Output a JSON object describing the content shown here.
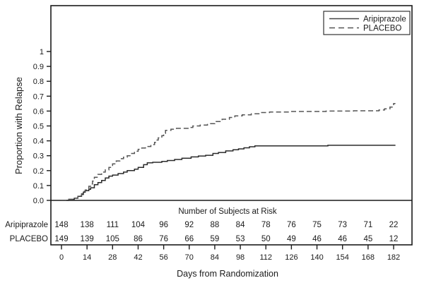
{
  "figure": {
    "background": "#ffffff",
    "frame_color": "#1a1a1a",
    "text_color": "#1a1a1a"
  },
  "chart_data": {
    "type": "line",
    "subtype": "kaplan-meier-step",
    "title": "",
    "xlabel": "Days from Randomization",
    "ylabel": "Proportion with Relapse",
    "grid": false,
    "xlim": [
      0,
      182
    ],
    "ylim": [
      0,
      1
    ],
    "x_ticks": [
      0,
      14,
      28,
      42,
      56,
      70,
      84,
      98,
      112,
      126,
      140,
      154,
      168,
      182
    ],
    "y_tick_values": [
      0,
      0.1,
      0.2,
      0.3,
      0.4,
      0.5,
      0.6,
      0.7,
      0.8,
      0.9,
      1
    ],
    "y_tick_labels": [
      "0.0",
      "0.1",
      "0.2",
      "0.3",
      "0.4",
      "0.5",
      "0.6",
      "0.7",
      "0.8",
      "0.9",
      "1"
    ],
    "legend_position": "top-right",
    "legend": {
      "entries": [
        {
          "label": "Aripiprazole",
          "style": "solid"
        },
        {
          "label": "PLACEBO",
          "style": "dashed"
        }
      ]
    },
    "series": [
      {
        "name": "Aripiprazole",
        "line_style": "solid",
        "color": "#2a2a2a",
        "points": [
          [
            0,
            0
          ],
          [
            4,
            0.007
          ],
          [
            7,
            0.014
          ],
          [
            9,
            0.027
          ],
          [
            11,
            0.04
          ],
          [
            12,
            0.055
          ],
          [
            13,
            0.065
          ],
          [
            15,
            0.075
          ],
          [
            16,
            0.085
          ],
          [
            18,
            0.105
          ],
          [
            20,
            0.12
          ],
          [
            22,
            0.134
          ],
          [
            24,
            0.15
          ],
          [
            26,
            0.163
          ],
          [
            28,
            0.17
          ],
          [
            31,
            0.18
          ],
          [
            34,
            0.19
          ],
          [
            36,
            0.2
          ],
          [
            40,
            0.21
          ],
          [
            42,
            0.222
          ],
          [
            45,
            0.24
          ],
          [
            47,
            0.252
          ],
          [
            50,
            0.256
          ],
          [
            55,
            0.262
          ],
          [
            58,
            0.268
          ],
          [
            62,
            0.275
          ],
          [
            66,
            0.283
          ],
          [
            71,
            0.292
          ],
          [
            75,
            0.298
          ],
          [
            79,
            0.303
          ],
          [
            83,
            0.315
          ],
          [
            86,
            0.322
          ],
          [
            90,
            0.332
          ],
          [
            94,
            0.34
          ],
          [
            97,
            0.346
          ],
          [
            100,
            0.353
          ],
          [
            103,
            0.36
          ],
          [
            106,
            0.366
          ],
          [
            146,
            0.37
          ],
          [
            183,
            0.37
          ]
        ]
      },
      {
        "name": "PLACEBO",
        "line_style": "dashed",
        "color": "#555555",
        "points": [
          [
            0,
            0
          ],
          [
            4,
            0.007
          ],
          [
            7,
            0.015
          ],
          [
            9,
            0.03
          ],
          [
            11,
            0.045
          ],
          [
            12,
            0.06
          ],
          [
            13,
            0.07
          ],
          [
            14,
            0.08
          ],
          [
            15,
            0.095
          ],
          [
            16,
            0.11
          ],
          [
            17,
            0.13
          ],
          [
            18,
            0.155
          ],
          [
            20,
            0.175
          ],
          [
            22,
            0.19
          ],
          [
            24,
            0.205
          ],
          [
            26,
            0.222
          ],
          [
            28,
            0.245
          ],
          [
            30,
            0.265
          ],
          [
            32,
            0.28
          ],
          [
            34,
            0.29
          ],
          [
            36,
            0.3
          ],
          [
            38,
            0.315
          ],
          [
            40,
            0.33
          ],
          [
            42,
            0.343
          ],
          [
            44,
            0.352
          ],
          [
            46,
            0.362
          ],
          [
            49,
            0.375
          ],
          [
            51,
            0.39
          ],
          [
            52,
            0.405
          ],
          [
            53,
            0.42
          ],
          [
            55,
            0.435
          ],
          [
            56,
            0.45
          ],
          [
            57,
            0.47
          ],
          [
            60,
            0.478
          ],
          [
            63,
            0.484
          ],
          [
            70,
            0.49
          ],
          [
            72,
            0.5
          ],
          [
            76,
            0.506
          ],
          [
            80,
            0.515
          ],
          [
            84,
            0.53
          ],
          [
            88,
            0.545
          ],
          [
            92,
            0.557
          ],
          [
            95,
            0.568
          ],
          [
            99,
            0.575
          ],
          [
            104,
            0.582
          ],
          [
            109,
            0.59
          ],
          [
            114,
            0.594
          ],
          [
            125,
            0.597
          ],
          [
            145,
            0.6
          ],
          [
            160,
            0.602
          ],
          [
            174,
            0.607
          ],
          [
            177,
            0.615
          ],
          [
            180,
            0.627
          ],
          [
            182,
            0.65
          ],
          [
            183,
            0.65
          ]
        ]
      }
    ],
    "at_risk_table": {
      "title": "Number of Subjects at Risk",
      "days": [
        0,
        14,
        28,
        42,
        56,
        70,
        84,
        98,
        112,
        126,
        140,
        154,
        168,
        182
      ],
      "rows": [
        {
          "label": "Aripiprazole",
          "values": [
            148,
            138,
            111,
            104,
            96,
            92,
            88,
            84,
            78,
            76,
            75,
            73,
            71,
            22
          ]
        },
        {
          "label": "PLACEBO",
          "values": [
            149,
            139,
            105,
            86,
            76,
            66,
            59,
            53,
            50,
            49,
            46,
            46,
            45,
            12
          ]
        }
      ]
    }
  }
}
